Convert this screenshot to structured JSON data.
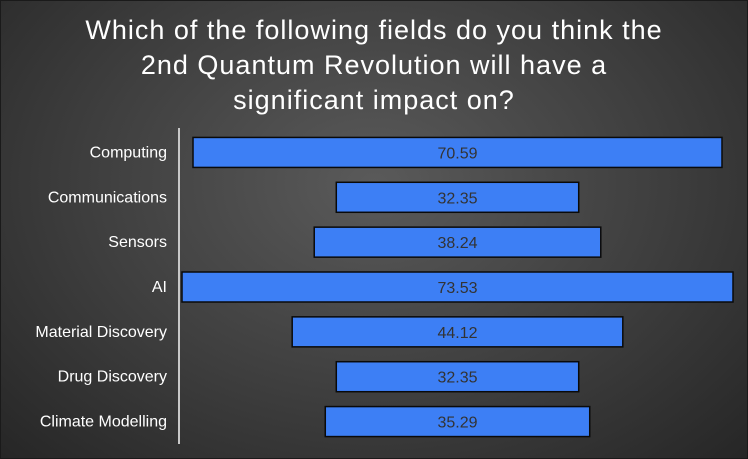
{
  "chart_data": {
    "type": "bar",
    "orientation": "horizontal",
    "layout": "centered",
    "title_lines": [
      "Which of the following fields do you think the",
      "2nd Quantum Revolution will have a",
      "significant impact on?"
    ],
    "categories": [
      "Computing",
      "Communications",
      "Sensors",
      "AI",
      "Material Discovery",
      "Drug Discovery",
      "Climate Modelling"
    ],
    "values": [
      70.59,
      32.35,
      38.24,
      73.53,
      44.12,
      32.35,
      35.29
    ],
    "value_labels": [
      "70.59",
      "32.35",
      "38.24",
      "73.53",
      "44.12",
      "32.35",
      "35.29"
    ],
    "xlim": [
      0,
      73.53
    ],
    "grid": false,
    "legend": "none",
    "colors": {
      "bar_fill": "#3d7ff5",
      "bar_stroke": "#0a0a0a",
      "axis_line": "#c8c8c8",
      "category_text": "#ffffff",
      "value_text": "#333333",
      "title_text": "#ffffff"
    }
  }
}
